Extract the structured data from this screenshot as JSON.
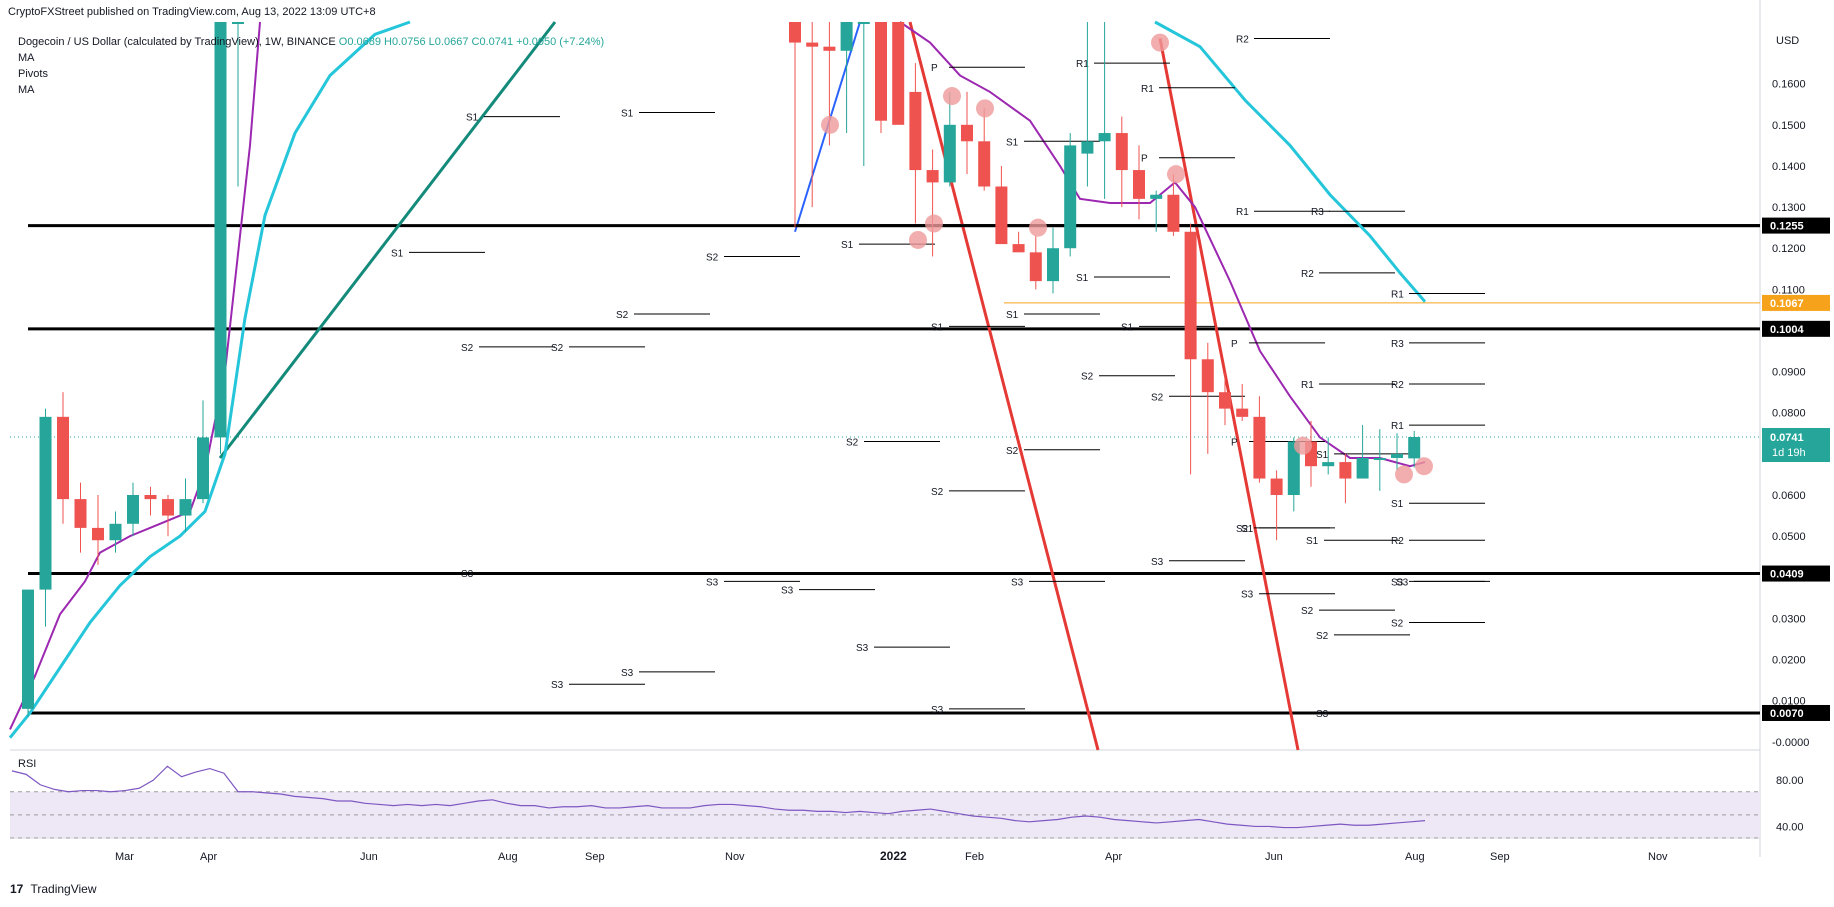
{
  "header": {
    "published": "CryptoFXStreet published on TradingView.com, Aug 13, 2022 13:09 UTC+8",
    "symbol_line": "Dogecoin / US Dollar (calculated by TradingView), 1W, BINANCE",
    "ohlc": "O0.0689 H0.0756 L0.0667 C0.0741 +0.0050 (+7.24%)",
    "indicators": [
      "MA",
      "Pivots",
      "MA"
    ],
    "rsi_label": "RSI",
    "brand": "TradingView",
    "logo": "17"
  },
  "chart_data": {
    "type": "candlestick",
    "title": "Dogecoin / US Dollar (calculated by TradingView), 1W, BINANCE",
    "currency": "USD",
    "last_price": "0.0741",
    "countdown": "1d 19h",
    "x_axis_labels": [
      "Mar",
      "Apr",
      "Jun",
      "Aug",
      "Sep",
      "Nov",
      "2022",
      "Feb",
      "Apr",
      "Jun",
      "Aug",
      "Sep",
      "Nov"
    ],
    "y_axis_labels": [
      "0.1600",
      "0.1500",
      "0.1400",
      "0.1300",
      "0.1200",
      "0.1100",
      "0.0900",
      "0.0800",
      "0.0600",
      "0.0500",
      "0.0300",
      "0.0200",
      "0.0100",
      "-0.0000"
    ],
    "y_range": [
      -0.002,
      0.175
    ],
    "horizontal_levels": [
      {
        "value": 0.1255,
        "label": "0.1255",
        "color": "#000000"
      },
      {
        "value": 0.1067,
        "label": "0.1067",
        "color": "#f7a21b"
      },
      {
        "value": 0.1004,
        "label": "0.1004",
        "color": "#000000"
      },
      {
        "value": 0.0409,
        "label": "0.0409",
        "color": "#000000"
      },
      {
        "value": 0.007,
        "label": "0.0070",
        "color": "#000000"
      }
    ],
    "candles_early": [
      {
        "o": 0.008,
        "h": 0.012,
        "l": 0.006,
        "c": 0.037
      },
      {
        "o": 0.037,
        "h": 0.081,
        "l": 0.028,
        "c": 0.079
      },
      {
        "o": 0.079,
        "h": 0.085,
        "l": 0.053,
        "c": 0.059
      },
      {
        "o": 0.059,
        "h": 0.063,
        "l": 0.046,
        "c": 0.052
      },
      {
        "o": 0.052,
        "h": 0.06,
        "l": 0.043,
        "c": 0.049
      },
      {
        "o": 0.049,
        "h": 0.056,
        "l": 0.046,
        "c": 0.053
      },
      {
        "o": 0.053,
        "h": 0.063,
        "l": 0.05,
        "c": 0.06
      },
      {
        "o": 0.06,
        "h": 0.062,
        "l": 0.055,
        "c": 0.059
      },
      {
        "o": 0.059,
        "h": 0.06,
        "l": 0.05,
        "c": 0.055
      },
      {
        "o": 0.055,
        "h": 0.064,
        "l": 0.051,
        "c": 0.059
      },
      {
        "o": 0.059,
        "h": 0.083,
        "l": 0.058,
        "c": 0.074
      },
      {
        "o": 0.074,
        "h": 0.175,
        "l": 0.07,
        "c": 0.175
      },
      {
        "o": 0.175,
        "h": 0.175,
        "l": 0.135,
        "c": 0.175
      }
    ],
    "candles_late": [
      {
        "o": 0.175,
        "h": 0.175,
        "l": 0.125,
        "c": 0.17
      },
      {
        "o": 0.17,
        "h": 0.175,
        "l": 0.13,
        "c": 0.169
      },
      {
        "o": 0.169,
        "h": 0.175,
        "l": 0.145,
        "c": 0.168
      },
      {
        "o": 0.168,
        "h": 0.175,
        "l": 0.148,
        "c": 0.175
      },
      {
        "o": 0.175,
        "h": 0.175,
        "l": 0.14,
        "c": 0.175
      },
      {
        "o": 0.175,
        "h": 0.175,
        "l": 0.148,
        "c": 0.151
      },
      {
        "o": 0.175,
        "h": 0.175,
        "l": 0.151,
        "c": 0.15
      },
      {
        "o": 0.158,
        "h": 0.165,
        "l": 0.126,
        "c": 0.139
      },
      {
        "o": 0.139,
        "h": 0.144,
        "l": 0.118,
        "c": 0.136
      },
      {
        "o": 0.136,
        "h": 0.158,
        "l": 0.135,
        "c": 0.15
      },
      {
        "o": 0.15,
        "h": 0.158,
        "l": 0.138,
        "c": 0.146
      },
      {
        "o": 0.146,
        "h": 0.154,
        "l": 0.134,
        "c": 0.135
      },
      {
        "o": 0.135,
        "h": 0.14,
        "l": 0.122,
        "c": 0.121
      },
      {
        "o": 0.121,
        "h": 0.124,
        "l": 0.12,
        "c": 0.119
      },
      {
        "o": 0.119,
        "h": 0.123,
        "l": 0.11,
        "c": 0.112
      },
      {
        "o": 0.112,
        "h": 0.125,
        "l": 0.109,
        "c": 0.12
      },
      {
        "o": 0.12,
        "h": 0.148,
        "l": 0.118,
        "c": 0.145
      },
      {
        "o": 0.143,
        "h": 0.175,
        "l": 0.135,
        "c": 0.146
      },
      {
        "o": 0.146,
        "h": 0.175,
        "l": 0.132,
        "c": 0.148
      },
      {
        "o": 0.148,
        "h": 0.152,
        "l": 0.13,
        "c": 0.139
      },
      {
        "o": 0.139,
        "h": 0.145,
        "l": 0.127,
        "c": 0.132
      },
      {
        "o": 0.132,
        "h": 0.134,
        "l": 0.124,
        "c": 0.133
      },
      {
        "o": 0.133,
        "h": 0.138,
        "l": 0.123,
        "c": 0.124
      },
      {
        "o": 0.124,
        "h": 0.126,
        "l": 0.065,
        "c": 0.093
      },
      {
        "o": 0.093,
        "h": 0.097,
        "l": 0.07,
        "c": 0.085
      },
      {
        "o": 0.085,
        "h": 0.09,
        "l": 0.077,
        "c": 0.081
      },
      {
        "o": 0.081,
        "h": 0.087,
        "l": 0.078,
        "c": 0.079
      },
      {
        "o": 0.079,
        "h": 0.084,
        "l": 0.063,
        "c": 0.064
      },
      {
        "o": 0.064,
        "h": 0.066,
        "l": 0.049,
        "c": 0.06
      },
      {
        "o": 0.06,
        "h": 0.074,
        "l": 0.056,
        "c": 0.073
      },
      {
        "o": 0.073,
        "h": 0.078,
        "l": 0.062,
        "c": 0.067
      },
      {
        "o": 0.067,
        "h": 0.074,
        "l": 0.065,
        "c": 0.068
      },
      {
        "o": 0.068,
        "h": 0.07,
        "l": 0.058,
        "c": 0.064
      },
      {
        "o": 0.064,
        "h": 0.077,
        "l": 0.064,
        "c": 0.069
      },
      {
        "o": 0.069,
        "h": 0.076,
        "l": 0.061,
        "c": 0.069
      },
      {
        "o": 0.069,
        "h": 0.075,
        "l": 0.066,
        "c": 0.07
      },
      {
        "o": 0.0689,
        "h": 0.0756,
        "l": 0.0667,
        "c": 0.0741
      }
    ],
    "pivot_labels": [
      {
        "t": "S1"
      },
      {
        "t": "S1"
      },
      {
        "t": "S1"
      },
      {
        "t": "S1"
      },
      {
        "t": "S1"
      },
      {
        "t": "S2"
      },
      {
        "t": "S2"
      },
      {
        "t": "S2"
      },
      {
        "t": "S2"
      },
      {
        "t": "S3"
      },
      {
        "t": "S3"
      },
      {
        "t": "S3"
      },
      {
        "t": "S3"
      },
      {
        "t": "S1"
      },
      {
        "t": "P"
      },
      {
        "t": "S1"
      },
      {
        "t": "S2"
      },
      {
        "t": "S2"
      },
      {
        "t": "S2"
      },
      {
        "t": "S3"
      },
      {
        "t": "S3"
      },
      {
        "t": "S3"
      },
      {
        "t": "S3"
      },
      {
        "t": "R1"
      },
      {
        "t": "R1"
      },
      {
        "t": "P"
      },
      {
        "t": "S1"
      },
      {
        "t": "S1"
      },
      {
        "t": "S1"
      },
      {
        "t": "S2"
      },
      {
        "t": "S2"
      },
      {
        "t": "S3"
      },
      {
        "t": "S3"
      },
      {
        "t": "P"
      },
      {
        "t": "R2"
      },
      {
        "t": "R1"
      },
      {
        "t": "R1"
      },
      {
        "t": "R2"
      },
      {
        "t": "S1"
      },
      {
        "t": "P"
      },
      {
        "t": "S2"
      },
      {
        "t": "S1"
      },
      {
        "t": "S2"
      },
      {
        "t": "S3"
      },
      {
        "t": "S3"
      },
      {
        "t": "R3"
      },
      {
        "t": "R2"
      },
      {
        "t": "R1"
      },
      {
        "t": "R2"
      },
      {
        "t": "R1"
      },
      {
        "t": "S1"
      },
      {
        "t": "S2"
      },
      {
        "t": "S3"
      },
      {
        "t": "S2"
      },
      {
        "t": "R3"
      }
    ],
    "rsi": {
      "y_labels": [
        "80.00",
        "40.00"
      ],
      "values": [
        88,
        85,
        76,
        72,
        70,
        71,
        71,
        70,
        71,
        73,
        80,
        92,
        83,
        87,
        90,
        86,
        70,
        70,
        69,
        68,
        66,
        65,
        64,
        62,
        62,
        60,
        59,
        58,
        59,
        58,
        59,
        58,
        60,
        62,
        63,
        60,
        58,
        58,
        56,
        57,
        57,
        58,
        56,
        56,
        57,
        58,
        56,
        56,
        56,
        58,
        59,
        59,
        58,
        57,
        55,
        54,
        54,
        53,
        53,
        52,
        53,
        52,
        51,
        53,
        54,
        55,
        53,
        51,
        49,
        48,
        47,
        45,
        44,
        45,
        46,
        48,
        49,
        48,
        46,
        45,
        44,
        43,
        44,
        45,
        46,
        44,
        42,
        41,
        40,
        40,
        39,
        39,
        40,
        41,
        42,
        41,
        41,
        42,
        43,
        44,
        45
      ]
    }
  },
  "colors": {
    "up": "#26a69a",
    "down": "#ef5350",
    "ma_purple": "#9c27b0",
    "ma_cyan": "#26c6da",
    "trend_teal": "#138a7a",
    "trend_red": "#e53935",
    "trend_blue": "#2962ff",
    "rsi_line": "#7e57c2",
    "rsi_band": "#ede7f6"
  }
}
